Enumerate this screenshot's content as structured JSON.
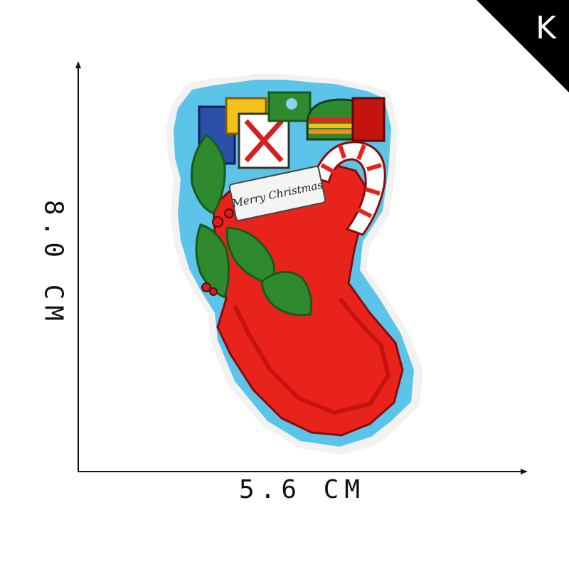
{
  "badge": {
    "letter": "K"
  },
  "dimensions": {
    "width_label": "5.6 CM",
    "height_label": "8.0 CM"
  },
  "patch": {
    "tag_text": "Merry Christmas"
  },
  "colors": {
    "background": "#ffffff",
    "axis": "#111111",
    "stocking_red": "#e8231c",
    "stocking_dark_red": "#c4140f",
    "blue_border": "#5cc4e8",
    "white_edge": "#f2f2f2",
    "holly_green": "#2f8a2f",
    "holly_dark": "#155c1a"
  }
}
